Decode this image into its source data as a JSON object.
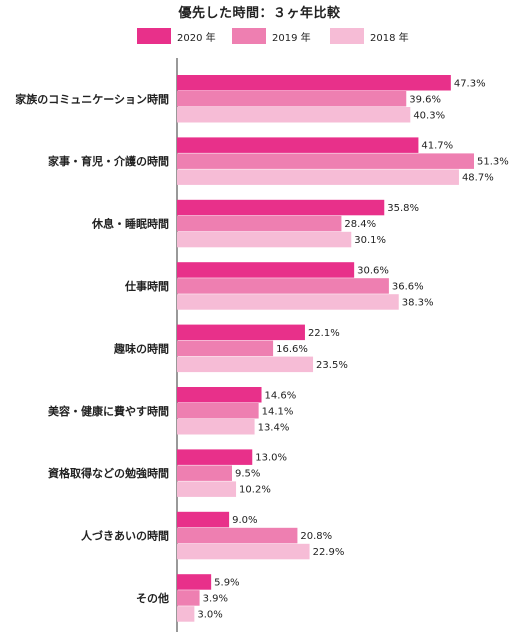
{
  "chart_data": {
    "type": "bar",
    "orientation": "horizontal",
    "title": "優先した時間：３ヶ年比較",
    "categories": [
      "家族のコミュニケーション時間",
      "家事・育児・介護の時間",
      "休息・睡眠時間",
      "仕事時間",
      "趣味の時間",
      "美容・健康に費やす時間",
      "資格取得などの勉強時間",
      "人づきあいの時間",
      "その他"
    ],
    "series": [
      {
        "name": "2020 年",
        "color": "#e8308a",
        "values": [
          47.3,
          41.7,
          35.8,
          30.6,
          22.1,
          14.6,
          13.0,
          9.0,
          5.9
        ]
      },
      {
        "name": "2019 年",
        "color": "#ee7fb1",
        "values": [
          39.6,
          51.3,
          28.4,
          36.6,
          16.6,
          14.1,
          9.5,
          20.8,
          3.9
        ]
      },
      {
        "name": "2018 年",
        "color": "#f6bcd6",
        "values": [
          40.3,
          48.7,
          30.1,
          38.3,
          23.5,
          13.4,
          10.2,
          22.9,
          3.0
        ]
      }
    ],
    "unit": "%",
    "xlim": [
      0,
      55
    ],
    "legend_position": "top",
    "grid": false
  }
}
